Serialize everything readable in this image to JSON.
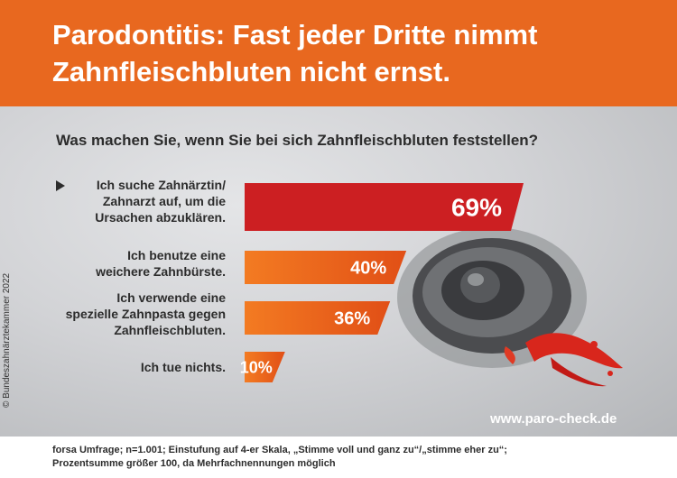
{
  "header": {
    "title_line1": "Parodontitis: Fast jeder Dritte nimmt",
    "title_line2": "Zahnfleischbluten nicht ernst."
  },
  "question": "Was machen Sie, wenn Sie bei sich Zahnfleischbluten feststellen?",
  "credit": "© Bundeszahnärztekammer 2022",
  "website": "www.paro-check.de",
  "footnote": {
    "line1": "forsa Umfrage; n=1.001; Einstufung auf 4-er Skala, „Stimme voll und ganz zu“/„stimme eher zu“;",
    "line2": "Prozentsumme größer 100, da Mehrfachnennungen möglich"
  },
  "colors": {
    "header": "#e8681f",
    "highlight": "#cc1f22",
    "orange": "#ee6a1c"
  },
  "chart_data": {
    "type": "bar",
    "orientation": "horizontal",
    "title": "Was machen Sie, wenn Sie bei sich Zahnfleischbluten feststellen?",
    "categories": [
      [
        "Ich suche Zahnärztin/",
        "Zahnarzt auf, um die",
        "Ursachen abzuklären."
      ],
      [
        "Ich benutze eine",
        "weichere Zahnbürste."
      ],
      [
        "Ich verwende eine",
        "spezielle Zahnpasta gegen",
        "Zahnfleischbluten."
      ],
      [
        "Ich tue nichts."
      ]
    ],
    "values": [
      69,
      40,
      36,
      10
    ],
    "value_labels": [
      "69%",
      "40%",
      "36%",
      "10%"
    ],
    "highlighted_index": 0,
    "unit": "%",
    "xlim": [
      0,
      100
    ]
  }
}
